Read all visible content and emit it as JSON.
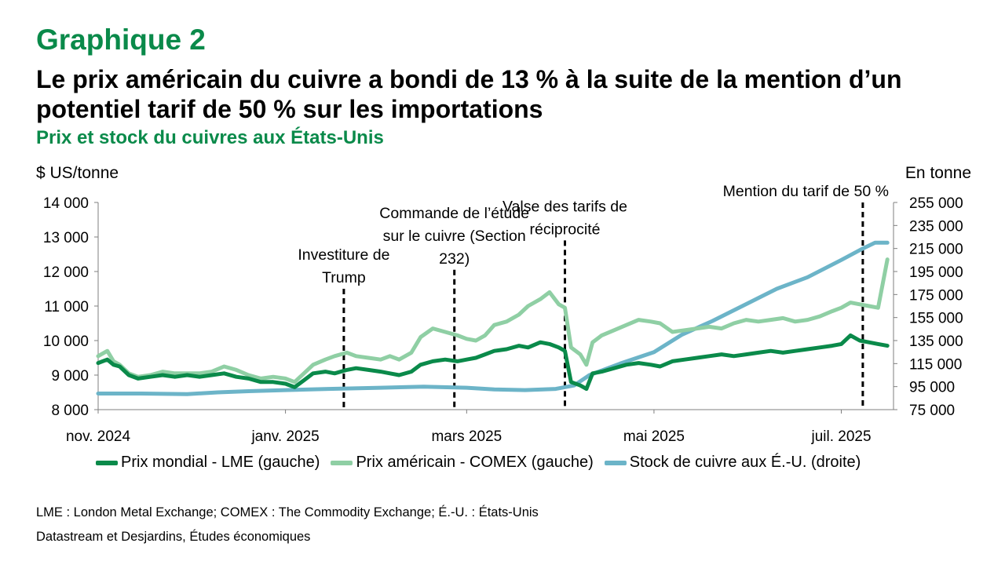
{
  "header": {
    "label": "Graphique 2",
    "title": "Le prix américain du cuivre a bondi de 13 % à la suite de la mention d’un potentiel tarif de 50 % sur les importations",
    "subtitle": "Prix et stock du cuivres aux États-Unis"
  },
  "chart_data": {
    "type": "line",
    "left_axis_unit": "$ US/tonne",
    "right_axis_unit": "En tonne",
    "y_left": {
      "min": 8000,
      "max": 14000,
      "ticks": [
        "8 000",
        "9 000",
        "10 000",
        "11 000",
        "12 000",
        "13 000",
        "14 000"
      ]
    },
    "y_right": {
      "min": 75000,
      "max": 255000,
      "ticks": [
        "75 000",
        "95 000",
        "115 000",
        "135 000",
        "155 000",
        "175 000",
        "195 000",
        "215 000",
        "235 000",
        "255 000"
      ]
    },
    "x_range": [
      "2024-11-01",
      "2025-07-18"
    ],
    "x_ticks": [
      {
        "label": "nov. 2024",
        "date": "2024-11-01"
      },
      {
        "label": "janv. 2025",
        "date": "2025-01-01"
      },
      {
        "label": "mars 2025",
        "date": "2025-03-01"
      },
      {
        "label": "mai 2025",
        "date": "2025-05-01"
      },
      {
        "label": "juil. 2025",
        "date": "2025-07-01"
      }
    ],
    "grid": false,
    "legend_position": "bottom",
    "events": [
      {
        "date": "2025-01-20",
        "top_value": 11500,
        "text_lines": [
          "Investiture de",
          "Trump"
        ]
      },
      {
        "date": "2025-02-25",
        "top_value": 12050,
        "text_lines": [
          "Commande de l’étude",
          "sur le cuivre (Section",
          "232)"
        ]
      },
      {
        "date": "2025-04-02",
        "top_value": 12900,
        "text_lines": [
          "Valse des tarifs de",
          "réciprocité"
        ]
      },
      {
        "date": "2025-07-08",
        "top_value": 14000,
        "text_lines": [
          "Mention du tarif de 50 %"
        ]
      }
    ],
    "series": [
      {
        "name": "Prix mondial - LME (gauche)",
        "axis": "left",
        "color": "#0a8a4a",
        "points": [
          [
            "2024-11-01",
            9350
          ],
          [
            "2024-11-04",
            9450
          ],
          [
            "2024-11-06",
            9300
          ],
          [
            "2024-11-08",
            9250
          ],
          [
            "2024-11-11",
            9000
          ],
          [
            "2024-11-14",
            8900
          ],
          [
            "2024-11-18",
            8950
          ],
          [
            "2024-11-22",
            9000
          ],
          [
            "2024-11-26",
            8950
          ],
          [
            "2024-11-30",
            9000
          ],
          [
            "2024-12-04",
            8950
          ],
          [
            "2024-12-08",
            9000
          ],
          [
            "2024-12-12",
            9050
          ],
          [
            "2024-12-16",
            8950
          ],
          [
            "2024-12-20",
            8900
          ],
          [
            "2024-12-24",
            8800
          ],
          [
            "2024-12-28",
            8800
          ],
          [
            "2025-01-01",
            8750
          ],
          [
            "2025-01-04",
            8650
          ],
          [
            "2025-01-07",
            8850
          ],
          [
            "2025-01-10",
            9050
          ],
          [
            "2025-01-14",
            9100
          ],
          [
            "2025-01-17",
            9050
          ],
          [
            "2025-01-21",
            9150
          ],
          [
            "2025-01-24",
            9200
          ],
          [
            "2025-01-28",
            9150
          ],
          [
            "2025-02-01",
            9100
          ],
          [
            "2025-02-04",
            9050
          ],
          [
            "2025-02-07",
            9000
          ],
          [
            "2025-02-11",
            9100
          ],
          [
            "2025-02-14",
            9300
          ],
          [
            "2025-02-18",
            9400
          ],
          [
            "2025-02-22",
            9450
          ],
          [
            "2025-02-26",
            9400
          ],
          [
            "2025-03-01",
            9450
          ],
          [
            "2025-03-04",
            9500
          ],
          [
            "2025-03-07",
            9600
          ],
          [
            "2025-03-10",
            9700
          ],
          [
            "2025-03-14",
            9750
          ],
          [
            "2025-03-18",
            9850
          ],
          [
            "2025-03-21",
            9800
          ],
          [
            "2025-03-25",
            9950
          ],
          [
            "2025-03-28",
            9900
          ],
          [
            "2025-03-31",
            9800
          ],
          [
            "2025-04-02",
            9700
          ],
          [
            "2025-04-04",
            8800
          ],
          [
            "2025-04-07",
            8700
          ],
          [
            "2025-04-09",
            8600
          ],
          [
            "2025-04-11",
            9050
          ],
          [
            "2025-04-14",
            9100
          ],
          [
            "2025-04-18",
            9200
          ],
          [
            "2025-04-22",
            9300
          ],
          [
            "2025-04-26",
            9350
          ],
          [
            "2025-04-30",
            9300
          ],
          [
            "2025-05-03",
            9250
          ],
          [
            "2025-05-07",
            9400
          ],
          [
            "2025-05-11",
            9450
          ],
          [
            "2025-05-15",
            9500
          ],
          [
            "2025-05-19",
            9550
          ],
          [
            "2025-05-23",
            9600
          ],
          [
            "2025-05-27",
            9550
          ],
          [
            "2025-05-31",
            9600
          ],
          [
            "2025-06-04",
            9650
          ],
          [
            "2025-06-08",
            9700
          ],
          [
            "2025-06-12",
            9650
          ],
          [
            "2025-06-16",
            9700
          ],
          [
            "2025-06-20",
            9750
          ],
          [
            "2025-06-24",
            9800
          ],
          [
            "2025-06-28",
            9850
          ],
          [
            "2025-07-01",
            9900
          ],
          [
            "2025-07-04",
            10150
          ],
          [
            "2025-07-07",
            10000
          ],
          [
            "2025-07-10",
            9950
          ],
          [
            "2025-07-13",
            9900
          ],
          [
            "2025-07-16",
            9850
          ]
        ]
      },
      {
        "name": "Prix américain - COMEX (gauche)",
        "axis": "left",
        "color": "#8fcfa4",
        "points": [
          [
            "2024-11-01",
            9550
          ],
          [
            "2024-11-04",
            9700
          ],
          [
            "2024-11-06",
            9400
          ],
          [
            "2024-11-08",
            9300
          ],
          [
            "2024-11-11",
            9050
          ],
          [
            "2024-11-14",
            8950
          ],
          [
            "2024-11-18",
            9000
          ],
          [
            "2024-11-22",
            9100
          ],
          [
            "2024-11-26",
            9050
          ],
          [
            "2024-11-30",
            9050
          ],
          [
            "2024-12-04",
            9050
          ],
          [
            "2024-12-08",
            9100
          ],
          [
            "2024-12-12",
            9250
          ],
          [
            "2024-12-16",
            9150
          ],
          [
            "2024-12-20",
            9000
          ],
          [
            "2024-12-24",
            8900
          ],
          [
            "2024-12-28",
            8950
          ],
          [
            "2025-01-01",
            8900
          ],
          [
            "2025-01-04",
            8800
          ],
          [
            "2025-01-07",
            9050
          ],
          [
            "2025-01-10",
            9300
          ],
          [
            "2025-01-14",
            9450
          ],
          [
            "2025-01-17",
            9550
          ],
          [
            "2025-01-21",
            9650
          ],
          [
            "2025-01-24",
            9550
          ],
          [
            "2025-01-28",
            9500
          ],
          [
            "2025-02-01",
            9450
          ],
          [
            "2025-02-04",
            9550
          ],
          [
            "2025-02-07",
            9450
          ],
          [
            "2025-02-11",
            9650
          ],
          [
            "2025-02-14",
            10100
          ],
          [
            "2025-02-18",
            10350
          ],
          [
            "2025-02-22",
            10250
          ],
          [
            "2025-02-26",
            10150
          ],
          [
            "2025-03-01",
            10050
          ],
          [
            "2025-03-04",
            10000
          ],
          [
            "2025-03-07",
            10150
          ],
          [
            "2025-03-10",
            10450
          ],
          [
            "2025-03-14",
            10550
          ],
          [
            "2025-03-18",
            10750
          ],
          [
            "2025-03-21",
            11000
          ],
          [
            "2025-03-25",
            11200
          ],
          [
            "2025-03-28",
            11400
          ],
          [
            "2025-03-31",
            11050
          ],
          [
            "2025-04-02",
            10950
          ],
          [
            "2025-04-04",
            9800
          ],
          [
            "2025-04-07",
            9600
          ],
          [
            "2025-04-09",
            9300
          ],
          [
            "2025-04-11",
            9950
          ],
          [
            "2025-04-14",
            10150
          ],
          [
            "2025-04-18",
            10300
          ],
          [
            "2025-04-22",
            10450
          ],
          [
            "2025-04-26",
            10600
          ],
          [
            "2025-04-30",
            10550
          ],
          [
            "2025-05-03",
            10500
          ],
          [
            "2025-05-07",
            10250
          ],
          [
            "2025-05-11",
            10300
          ],
          [
            "2025-05-15",
            10350
          ],
          [
            "2025-05-19",
            10400
          ],
          [
            "2025-05-23",
            10350
          ],
          [
            "2025-05-27",
            10500
          ],
          [
            "2025-05-31",
            10600
          ],
          [
            "2025-06-04",
            10550
          ],
          [
            "2025-06-08",
            10600
          ],
          [
            "2025-06-12",
            10650
          ],
          [
            "2025-06-16",
            10550
          ],
          [
            "2025-06-20",
            10600
          ],
          [
            "2025-06-24",
            10700
          ],
          [
            "2025-06-28",
            10850
          ],
          [
            "2025-07-01",
            10950
          ],
          [
            "2025-07-04",
            11100
          ],
          [
            "2025-07-07",
            11050
          ],
          [
            "2025-07-10",
            11000
          ],
          [
            "2025-07-13",
            10950
          ],
          [
            "2025-07-16",
            12350
          ]
        ]
      },
      {
        "name": "Stock de cuivre aux É.-U. (droite)",
        "axis": "right",
        "color": "#6cb4c8",
        "points": [
          [
            "2024-11-01",
            89000
          ],
          [
            "2024-11-15",
            89000
          ],
          [
            "2024-11-30",
            88500
          ],
          [
            "2024-12-10",
            90000
          ],
          [
            "2024-12-20",
            91000
          ],
          [
            "2025-01-01",
            92000
          ],
          [
            "2025-01-15",
            93000
          ],
          [
            "2025-02-01",
            94000
          ],
          [
            "2025-02-15",
            95000
          ],
          [
            "2025-03-01",
            94000
          ],
          [
            "2025-03-10",
            92500
          ],
          [
            "2025-03-20",
            92000
          ],
          [
            "2025-03-30",
            93000
          ],
          [
            "2025-04-05",
            96000
          ],
          [
            "2025-04-10",
            105000
          ],
          [
            "2025-04-20",
            115000
          ],
          [
            "2025-05-01",
            125000
          ],
          [
            "2025-05-10",
            140000
          ],
          [
            "2025-05-20",
            152000
          ],
          [
            "2025-06-01",
            168000
          ],
          [
            "2025-06-10",
            180000
          ],
          [
            "2025-06-20",
            190000
          ],
          [
            "2025-07-01",
            205000
          ],
          [
            "2025-07-08",
            215000
          ],
          [
            "2025-07-12",
            220000
          ],
          [
            "2025-07-16",
            220000
          ]
        ]
      }
    ]
  },
  "legend": {
    "items": [
      {
        "label": "Prix mondial - LME (gauche)",
        "color": "#0a8a4a"
      },
      {
        "label": "Prix américain - COMEX (gauche)",
        "color": "#8fcfa4"
      },
      {
        "label": "Stock de cuivre aux É.-U. (droite)",
        "color": "#6cb4c8"
      }
    ]
  },
  "notes": {
    "line1": "LME : London Metal Exchange; COMEX : The Commodity Exchange; É.-U. : États-Unis",
    "line2": "Datastream et Desjardins, Études économiques"
  }
}
